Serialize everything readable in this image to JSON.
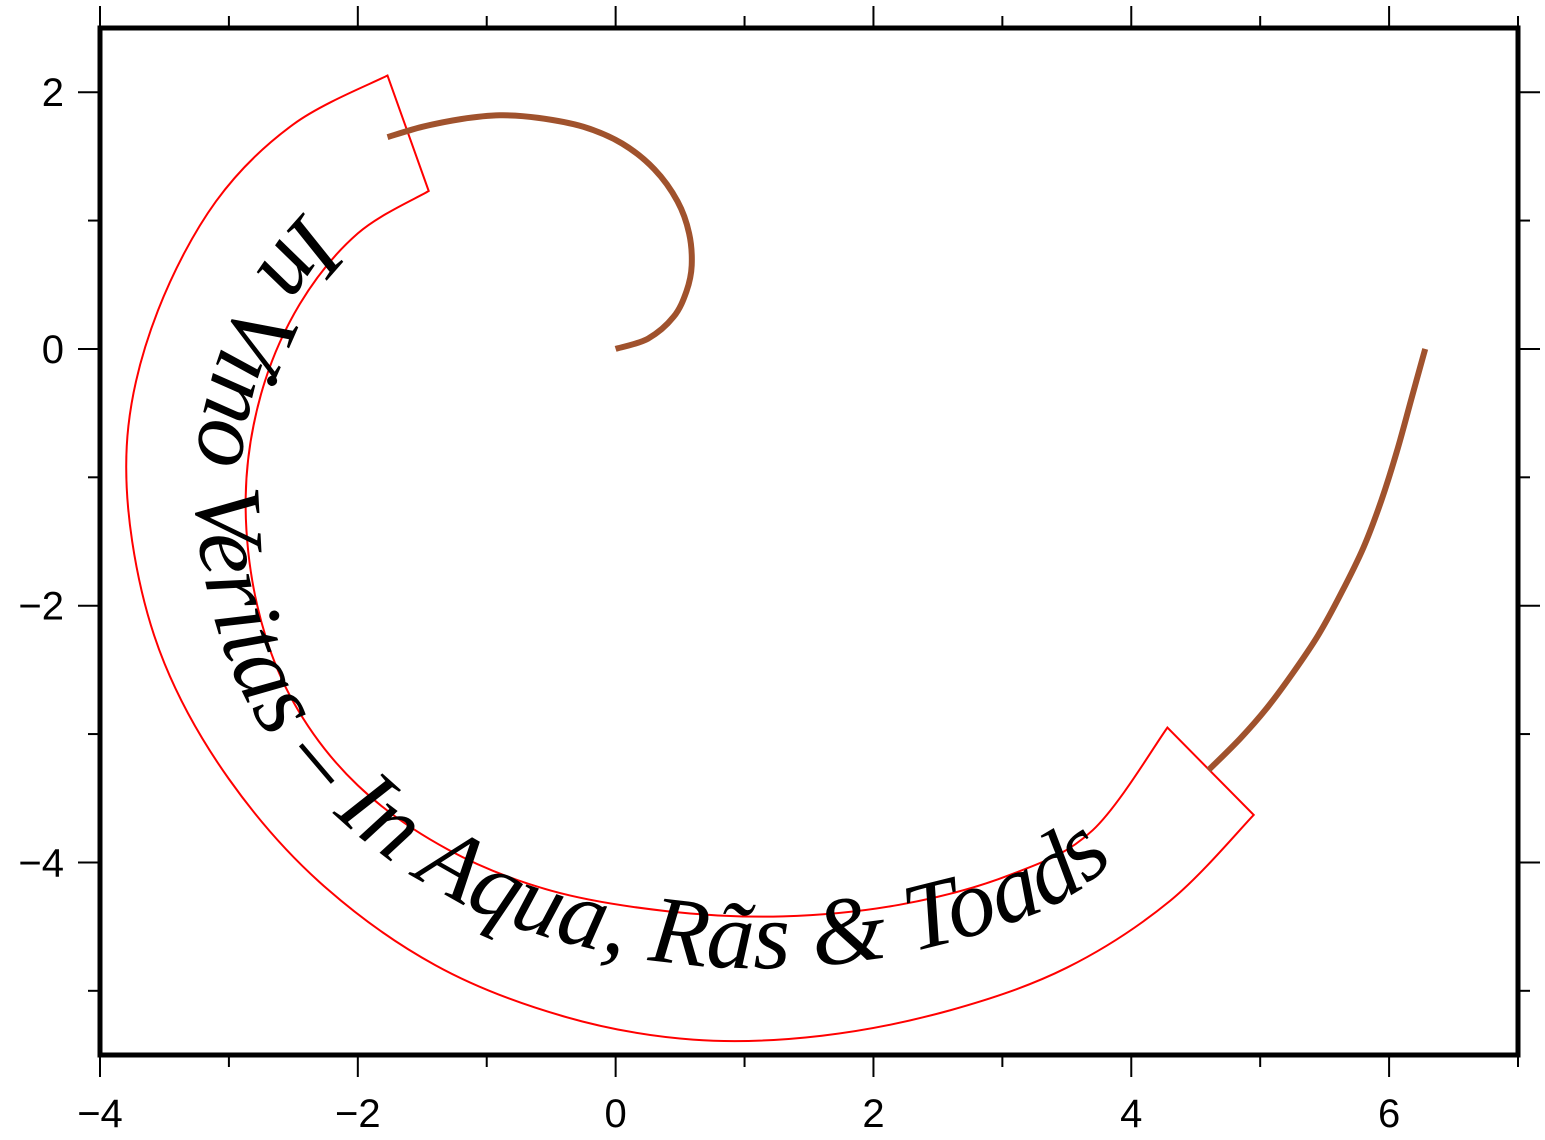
{
  "chart_data": {
    "type": "line",
    "title": "",
    "xlabel": "",
    "ylabel": "",
    "xlim": [
      -4,
      7
    ],
    "ylim": [
      -5.5,
      2.5
    ],
    "x_ticks": [
      -4,
      -2,
      0,
      2,
      4,
      6
    ],
    "x_tick_labels": [
      "−4",
      "−2",
      "0",
      "2",
      "4",
      "6"
    ],
    "y_ticks": [
      -4,
      -2,
      0,
      2
    ],
    "y_tick_labels": [
      "−4",
      "−2",
      "0",
      "2"
    ],
    "x_minor_ticks": [
      -3,
      -1,
      1,
      3,
      5,
      7
    ],
    "y_minor_ticks": [
      -5,
      -3,
      -1,
      1
    ],
    "grid": false,
    "series": [
      {
        "color": "#a0522d",
        "points": [
          [
            0,
            0
          ],
          [
            0.25,
            0.08
          ],
          [
            0.45,
            0.25
          ],
          [
            0.55,
            0.45
          ],
          [
            0.59,
            0.65
          ],
          [
            0.57,
            0.9
          ],
          [
            0.48,
            1.15
          ],
          [
            0.3,
            1.4
          ],
          [
            0.05,
            1.6
          ],
          [
            -0.25,
            1.73
          ],
          [
            -0.6,
            1.8
          ],
          [
            -0.9,
            1.82
          ],
          [
            -1.2,
            1.79
          ],
          [
            -1.5,
            1.73
          ],
          [
            -1.77,
            1.65
          ]
        ]
      },
      {
        "color": "#a0522d",
        "points": [
          [
            4.6,
            -3.28
          ],
          [
            4.85,
            -3.03
          ],
          [
            5.05,
            -2.8
          ],
          [
            5.25,
            -2.53
          ],
          [
            5.45,
            -2.23
          ],
          [
            5.63,
            -1.9
          ],
          [
            5.8,
            -1.55
          ],
          [
            5.94,
            -1.18
          ],
          [
            6.06,
            -0.8
          ],
          [
            6.17,
            -0.4
          ],
          [
            6.28,
            0
          ]
        ]
      }
    ],
    "text_path": {
      "text": "In Vino Veritas  – In Aqua, Rãs & Toads",
      "box_color": "#ff0000",
      "outer": [
        [
          -1.77,
          2.13
        ],
        [
          -2.5,
          1.75
        ],
        [
          -3.1,
          1.15
        ],
        [
          -3.55,
          0.3
        ],
        [
          -3.78,
          -0.6
        ],
        [
          -3.75,
          -1.5
        ],
        [
          -3.5,
          -2.45
        ],
        [
          -3.0,
          -3.35
        ],
        [
          -2.3,
          -4.15
        ],
        [
          -1.4,
          -4.8
        ],
        [
          -0.4,
          -5.2
        ],
        [
          0.6,
          -5.38
        ],
        [
          1.6,
          -5.35
        ],
        [
          2.6,
          -5.15
        ],
        [
          3.5,
          -4.82
        ],
        [
          4.3,
          -4.3
        ],
        [
          4.95,
          -3.63
        ]
      ],
      "inner": [
        [
          -1.45,
          1.23
        ],
        [
          -2.0,
          0.9
        ],
        [
          -2.45,
          0.35
        ],
        [
          -2.75,
          -0.35
        ],
        [
          -2.87,
          -1.15
        ],
        [
          -2.78,
          -2.0
        ],
        [
          -2.5,
          -2.75
        ],
        [
          -2.0,
          -3.4
        ],
        [
          -1.3,
          -3.9
        ],
        [
          -0.5,
          -4.22
        ],
        [
          0.4,
          -4.38
        ],
        [
          1.3,
          -4.42
        ],
        [
          2.2,
          -4.33
        ],
        [
          3.05,
          -4.1
        ],
        [
          3.7,
          -3.75
        ],
        [
          4.28,
          -2.95
        ]
      ]
    }
  }
}
